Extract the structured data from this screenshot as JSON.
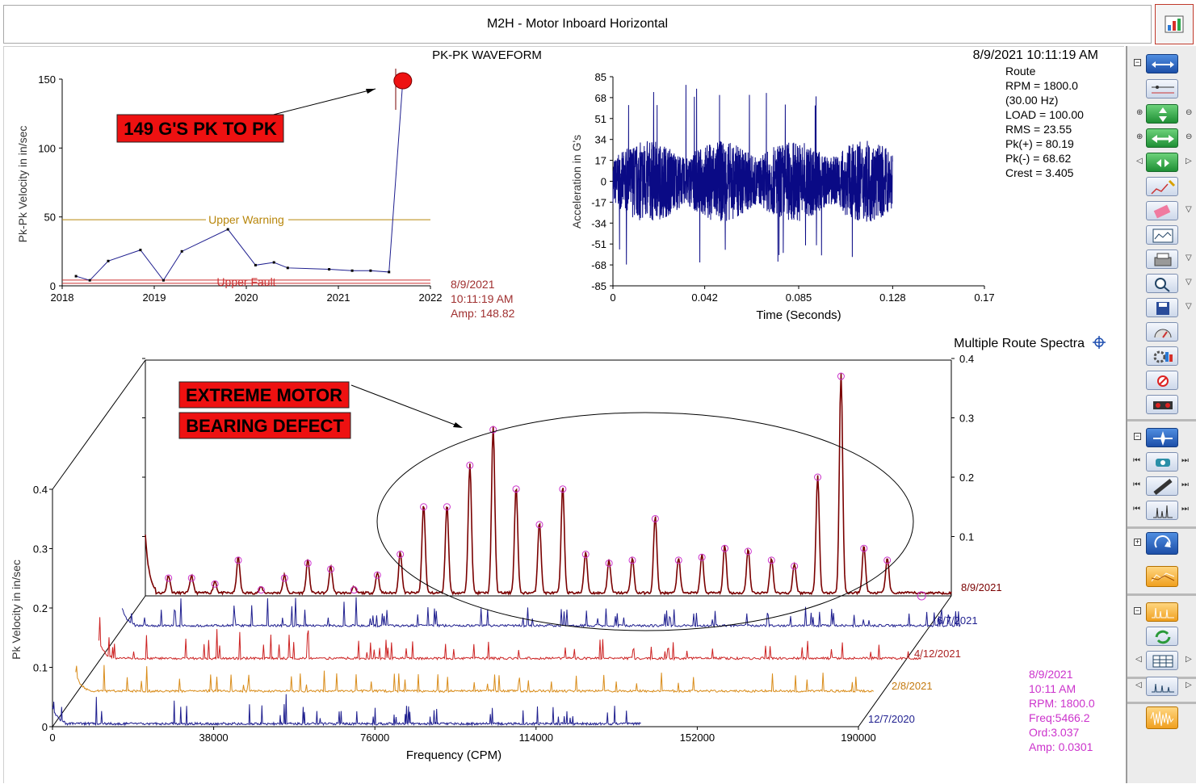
{
  "window": {
    "title": "M2H - Motor Inboard Horizontal"
  },
  "trend": {
    "title": "PK-PK WAVEFORM",
    "ylabel": "Pk-Pk Velocity in in/sec",
    "yticks": [
      "150",
      "100",
      "50",
      "0"
    ],
    "xticks": [
      "2018",
      "2019",
      "2020",
      "2021",
      "2022"
    ],
    "warning_label": "Upper Warning",
    "fault_label": "Upper Fault",
    "readout": {
      "date": "8/9/2021",
      "time": "10:11:19 AM",
      "amp": "Amp: 148.82"
    },
    "callout": "149 G'S PK TO PK"
  },
  "waveform": {
    "timestamp": "8/9/2021 10:11:19 AM",
    "ylabel": "Acceleration in G's",
    "xlabel": "Time (Seconds)",
    "yticks": [
      "85",
      "68",
      "51",
      "34",
      "17",
      "0",
      "-17",
      "-34",
      "-51",
      "-68",
      "-85"
    ],
    "xticks": [
      "0",
      "0.042",
      "0.085",
      "0.128",
      "0.17"
    ],
    "stats": [
      "Route",
      "RPM = 1800.0",
      "(30.00 Hz)",
      "LOAD = 100.00",
      "RMS = 23.55",
      "Pk(+) = 80.19",
      "Pk(-) = 68.62",
      "Crest = 3.405"
    ]
  },
  "spectra": {
    "title": "Multiple Route Spectra",
    "ylabel": "Pk Velocity in in/sec",
    "xlabel": "Frequency (CPM)",
    "left_yticks": [
      "0.4",
      "0.3",
      "0.2",
      "0.1",
      "0"
    ],
    "right_yticks": [
      "0.4",
      "0.3",
      "0.2",
      "0.1"
    ],
    "xticks": [
      "0",
      "38000",
      "76000",
      "114000",
      "152000",
      "190000"
    ],
    "dates": [
      "8/9/2021",
      "6/7/2021",
      "4/12/2021",
      "2/8/2021",
      "12/7/2020"
    ],
    "callout_line1": "EXTREME MOTOR",
    "callout_line2": "BEARING DEFECT",
    "cursor_readout": [
      "8/9/2021",
      "10:11 AM",
      "RPM: 1800.0",
      "Freq:5466.2",
      "Ord:3.037",
      "Amp: 0.0301"
    ]
  },
  "colors": {
    "trace_navy": "#1f1f8f",
    "spectrum_red": "#7a0000",
    "spectrum_redline": "#cc2222",
    "spectrum_orange": "#d98c1a",
    "warning": "#b8860b",
    "fault": "#cc3333",
    "marker": "#cc33cc",
    "callout_bg": "#ee1111"
  },
  "chart_data": [
    {
      "type": "line",
      "title": "PK-PK WAVEFORM",
      "ylabel": "Pk-Pk Velocity in in/sec",
      "x": [
        2018.15,
        2018.3,
        2018.5,
        2018.85,
        2019.1,
        2019.3,
        2019.8,
        2020.1,
        2020.3,
        2020.45,
        2020.9,
        2021.15,
        2021.35,
        2021.55,
        2021.7
      ],
      "y": [
        7,
        4,
        18,
        26,
        4,
        25,
        41,
        15,
        17,
        13,
        12,
        11,
        11,
        10,
        148.82
      ],
      "thresholds": {
        "Upper Warning": 48,
        "Upper Fault": 3
      },
      "xlim": [
        2018,
        2022
      ],
      "ylim": [
        0,
        150
      ]
    },
    {
      "type": "line",
      "title": "",
      "xlabel": "Time (Seconds)",
      "ylabel": "Acceleration in G's",
      "xlim": [
        0,
        0.17
      ],
      "ylim": [
        -85,
        85
      ],
      "series": [
        {
          "pk_plus": 80.19,
          "pk_minus": -68.62,
          "rms": 23.55,
          "duration": 0.128
        }
      ]
    },
    {
      "type": "line",
      "title": "Multiple Route Spectra",
      "xlabel": "Frequency (CPM)",
      "ylabel": "Pk Velocity in in/sec",
      "xlim": [
        0,
        190000
      ],
      "ylim": [
        0,
        0.4
      ],
      "series": [
        {
          "name": "8/9/2021",
          "peaks_x": [
            5466,
            10900,
            16400,
            21900,
            27300,
            32800,
            38300,
            43700,
            49200,
            54700,
            60100,
            65600,
            71100,
            76500,
            82000,
            87400,
            92900,
            98400,
            103800,
            109300,
            114800,
            120200,
            125700,
            131200,
            136600,
            142100,
            147600,
            153000,
            158500,
            164000,
            169400,
            174900
          ],
          "peaks_y": [
            0.03,
            0.03,
            0.02,
            0.06,
            0.01,
            0.03,
            0.055,
            0.045,
            0.01,
            0.035,
            0.07,
            0.15,
            0.15,
            0.22,
            0.28,
            0.18,
            0.12,
            0.18,
            0.07,
            0.055,
            0.06,
            0.13,
            0.06,
            0.065,
            0.08,
            0.075,
            0.06,
            0.05,
            0.2,
            0.37,
            0.08,
            0.06
          ]
        },
        {
          "name": "6/7/2021",
          "level": "low"
        },
        {
          "name": "4/12/2021",
          "level": "low"
        },
        {
          "name": "2/8/2021",
          "level": "low"
        },
        {
          "name": "12/7/2020",
          "level": "low"
        }
      ]
    }
  ]
}
